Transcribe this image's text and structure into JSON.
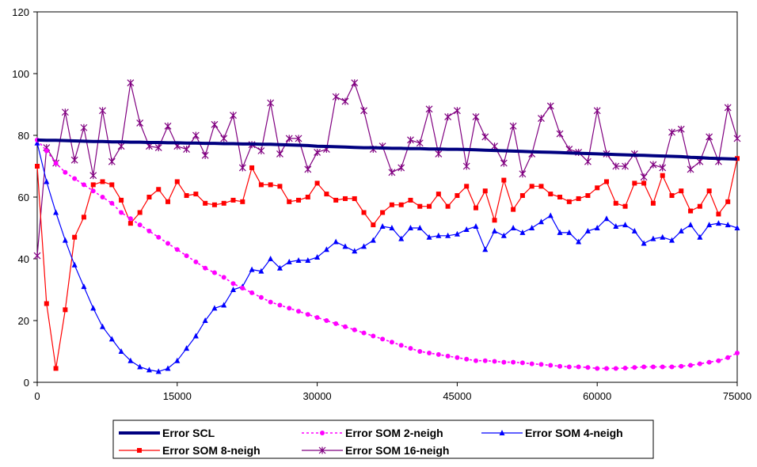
{
  "chart_data": {
    "type": "line",
    "title": "",
    "xlabel": "",
    "ylabel": "",
    "xlim": [
      0,
      75000
    ],
    "ylim": [
      0,
      120
    ],
    "x_ticks": [
      "0",
      "15000",
      "30000",
      "45000",
      "60000",
      "75000"
    ],
    "y_ticks": [
      "0",
      "20",
      "40",
      "60",
      "80",
      "100",
      "120"
    ],
    "grid": false,
    "legend_position": "bottom",
    "x": [
      0,
      1000,
      2000,
      3000,
      4000,
      5000,
      6000,
      7000,
      8000,
      9000,
      10000,
      11000,
      12000,
      13000,
      14000,
      15000,
      16000,
      17000,
      18000,
      19000,
      20000,
      21000,
      22000,
      23000,
      24000,
      25000,
      26000,
      27000,
      28000,
      29000,
      30000,
      31000,
      32000,
      33000,
      34000,
      35000,
      36000,
      37000,
      38000,
      39000,
      40000,
      41000,
      42000,
      43000,
      44000,
      45000,
      46000,
      47000,
      48000,
      49000,
      50000,
      51000,
      52000,
      53000,
      54000,
      55000,
      56000,
      57000,
      58000,
      59000,
      60000,
      61000,
      62000,
      63000,
      64000,
      65000,
      66000,
      67000,
      68000,
      69000,
      70000,
      71000,
      72000,
      73000,
      74000,
      75000
    ],
    "series": [
      {
        "name": "Error SCL",
        "color": "#000080",
        "marker": "none",
        "dash": "solid",
        "width": 4,
        "values": [
          78.5,
          78.4,
          78.4,
          78.3,
          78.2,
          78.1,
          78.0,
          78.0,
          77.9,
          77.9,
          77.8,
          77.8,
          77.7,
          77.7,
          77.6,
          77.6,
          77.5,
          77.5,
          77.4,
          77.4,
          77.3,
          77.3,
          77.2,
          77.2,
          77.1,
          77.1,
          77.0,
          76.9,
          76.8,
          76.7,
          76.5,
          76.4,
          76.3,
          76.2,
          76.1,
          76.0,
          76.0,
          75.9,
          75.8,
          75.8,
          75.7,
          75.7,
          75.6,
          75.6,
          75.5,
          75.5,
          75.4,
          75.3,
          75.2,
          75.1,
          75.0,
          74.9,
          74.8,
          74.7,
          74.6,
          74.5,
          74.4,
          74.3,
          74.2,
          74.1,
          74.0,
          73.9,
          73.8,
          73.7,
          73.6,
          73.5,
          73.4,
          73.3,
          73.2,
          73.1,
          72.9,
          72.8,
          72.6,
          72.5,
          72.4,
          72.3
        ]
      },
      {
        "name": "Error SOM 2-neigh",
        "color": "#ff00ff",
        "marker": "circle",
        "dash": "dashed",
        "width": 1.6,
        "values": [
          78.5,
          75,
          71,
          68,
          66,
          64,
          62,
          60,
          58,
          55,
          53,
          51,
          49,
          47,
          45,
          43,
          41,
          39,
          37,
          35.5,
          34,
          32,
          30.5,
          29,
          27.5,
          26,
          25,
          24,
          23,
          22,
          21,
          20,
          19,
          18,
          17,
          16,
          15,
          14,
          13,
          12,
          11,
          10,
          9.5,
          9,
          8.5,
          8,
          7.5,
          7,
          7,
          6.8,
          6.5,
          6.5,
          6.3,
          6,
          5.8,
          5.5,
          5.2,
          5,
          5,
          4.8,
          4.5,
          4.5,
          4.5,
          4.6,
          4.8,
          5,
          5,
          5,
          5,
          5.2,
          5.5,
          6,
          6.5,
          7,
          8,
          9.5
        ]
      },
      {
        "name": "Error SOM 4-neigh",
        "color": "#0000ff",
        "marker": "triangle",
        "dash": "solid",
        "width": 1.2,
        "values": [
          77.5,
          65,
          55,
          46,
          38,
          31,
          24,
          18,
          14,
          10,
          7,
          5,
          4,
          3.5,
          4.5,
          7,
          11,
          15,
          20,
          24,
          25,
          30,
          31,
          36.5,
          36,
          40,
          37,
          39,
          39.5,
          39.5,
          40.5,
          43,
          45.5,
          44,
          42.5,
          44,
          46,
          50.5,
          50,
          46.5,
          50,
          50,
          47,
          47.5,
          47.5,
          48,
          49.5,
          50.5,
          43,
          49,
          47.5,
          50,
          48.5,
          50,
          52,
          54,
          48.5,
          48.5,
          45.5,
          49,
          50,
          53,
          50.5,
          51,
          49,
          45,
          46.5,
          47,
          46,
          49,
          51,
          47,
          51,
          51.5,
          51,
          50
        ]
      },
      {
        "name": "Error SOM 8-neigh",
        "color": "#ff0000",
        "marker": "square",
        "dash": "solid",
        "width": 1.2,
        "values": [
          70,
          25.5,
          4.5,
          23.5,
          47,
          53.5,
          64,
          65,
          64,
          59,
          51.5,
          55,
          60,
          62.5,
          58.5,
          65,
          60.5,
          61,
          58,
          57.5,
          58,
          59,
          58.5,
          69.5,
          64,
          64,
          63.5,
          58.5,
          59,
          60,
          64.5,
          61,
          59,
          59.5,
          59.5,
          55,
          51,
          55,
          57.5,
          57.5,
          59,
          57,
          57,
          61,
          57,
          60.5,
          63.5,
          56.5,
          62,
          52.5,
          65.5,
          56,
          60.5,
          63.5,
          63.5,
          61,
          60,
          58.5,
          59.5,
          60.5,
          63,
          65,
          58,
          57,
          64.5,
          64.5,
          58,
          67,
          60.5,
          62,
          55.5,
          57,
          62,
          54.5,
          58.5,
          72.5
        ]
      },
      {
        "name": "Error SOM 16-neigh",
        "color": "#800080",
        "marker": "star",
        "dash": "solid",
        "width": 1.2,
        "values": [
          41,
          76,
          71,
          87.5,
          72,
          82.5,
          67,
          88,
          71.5,
          76.5,
          97,
          84,
          76.5,
          76,
          83,
          76.5,
          75.5,
          80,
          73.5,
          83.5,
          79,
          86.5,
          69.5,
          77,
          75,
          90.5,
          74,
          79,
          79,
          69,
          74.5,
          75.5,
          92.5,
          91,
          97,
          88,
          75.5,
          76.5,
          68,
          69.5,
          78.5,
          77.5,
          88.5,
          74,
          86,
          88,
          70,
          86,
          79.5,
          76.5,
          71,
          83,
          67.5,
          74,
          85.5,
          89.5,
          80.5,
          75.5,
          74.5,
          71.5,
          88,
          74,
          70,
          70,
          74,
          66.5,
          70.5,
          69.5,
          81,
          82,
          69,
          71.5,
          79.5,
          71.5,
          89,
          79
        ]
      }
    ]
  }
}
